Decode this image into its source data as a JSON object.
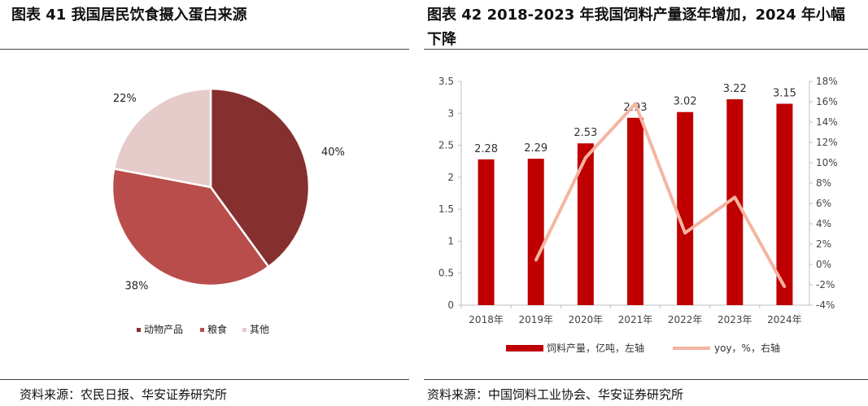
{
  "left": {
    "title": "图表 41 我国居民饮食摄入蛋白来源",
    "source": "资料来源：农民日报、华安证券研究所"
  },
  "right": {
    "title": "图表 42 2018-2023 年我国饲料产量逐年增加，2024 年小幅下降",
    "source": "资料来源：中国饲料工业协会、华安证券研究所"
  },
  "chart_data": [
    {
      "type": "pie",
      "title": "",
      "labels": [
        "动物产品",
        "粮食",
        "其他"
      ],
      "values": [
        40,
        38,
        22
      ],
      "value_labels": [
        "40%",
        "38%",
        "22%"
      ],
      "colors": [
        "#85302f",
        "#b84d4b",
        "#e6cbcb"
      ],
      "legend_position": "bottom"
    },
    {
      "type": "bar",
      "title": "",
      "categories": [
        "2018年",
        "2019年",
        "2020年",
        "2021年",
        "2022年",
        "2023年",
        "2024年"
      ],
      "series": [
        {
          "name": "饲料产量，亿吨，左轴",
          "type": "bar",
          "values": [
            2.28,
            2.29,
            2.53,
            2.93,
            3.02,
            3.22,
            3.15
          ],
          "value_labels": [
            "2.28",
            "2.29",
            "2.53",
            "2.93",
            "3.02",
            "3.22",
            "3.15"
          ],
          "color": "#c00000",
          "axis": "left"
        },
        {
          "name": "yoy，%，右轴",
          "type": "line",
          "values": [
            null,
            0.4,
            10.5,
            15.8,
            3.1,
            6.6,
            -2.2
          ],
          "color": "#f4b5a1",
          "axis": "right"
        }
      ],
      "y_left": {
        "ylim": [
          0,
          3.5
        ],
        "ticks": [
          "0",
          "0.5",
          "1",
          "1.5",
          "2",
          "2.5",
          "3",
          "3.5"
        ]
      },
      "y_right": {
        "ylim": [
          -4,
          18
        ],
        "ticks": [
          "-4%",
          "-2%",
          "0%",
          "2%",
          "4%",
          "6%",
          "8%",
          "10%",
          "12%",
          "14%",
          "16%",
          "18%"
        ]
      },
      "legend_position": "bottom",
      "grid": false
    }
  ]
}
